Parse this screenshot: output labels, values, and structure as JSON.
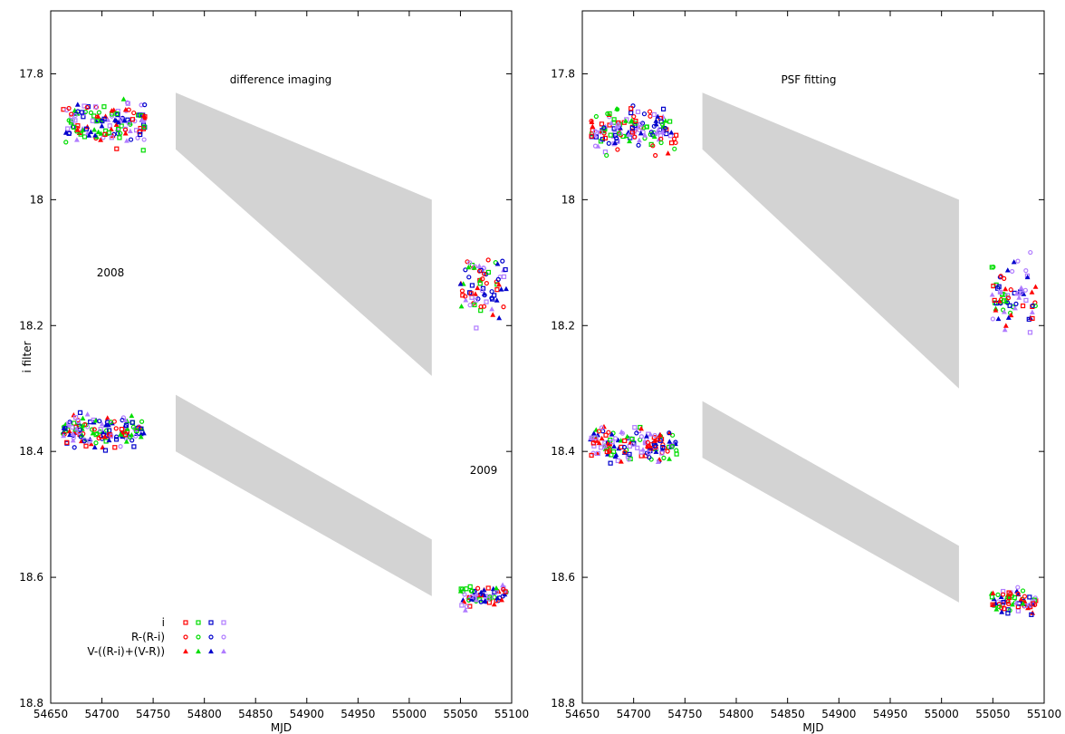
{
  "chart_data": [
    {
      "type": "scatter",
      "title": "difference imaging",
      "xlabel": "MJD",
      "ylabel": "i filter",
      "xlim": [
        54650,
        55100
      ],
      "ylim": [
        18.8,
        17.7
      ],
      "y_inverted": true,
      "x_ticks": [
        "54650",
        "54700",
        "54750",
        "54800",
        "54850",
        "54900",
        "54950",
        "55000",
        "55050",
        "55100"
      ],
      "y_ticks": [
        "17.8",
        "18",
        "18.2",
        "18.4",
        "18.6",
        "18.8"
      ],
      "annotations": [
        {
          "text": "2008",
          "x": 54690,
          "y": 18.12
        },
        {
          "text": "2009",
          "x": 55068,
          "y": 18.44
        }
      ],
      "bands": [
        {
          "x": [
            54772,
            55022
          ],
          "y_top": [
            17.83,
            18.0
          ],
          "y_bottom": [
            17.92,
            18.28
          ]
        },
        {
          "x": [
            54772,
            55022
          ],
          "y_top": [
            18.31,
            18.54
          ],
          "y_bottom": [
            18.4,
            18.63
          ]
        }
      ],
      "clusters": [
        {
          "x_range": [
            54662,
            54742
          ],
          "y_center": 17.88,
          "y_spread": 0.045,
          "season": "2008"
        },
        {
          "x_range": [
            54662,
            54742
          ],
          "y_center": 18.37,
          "y_spread": 0.035,
          "season": "2008"
        },
        {
          "x_range": [
            55050,
            55095
          ],
          "y_center": 18.14,
          "y_spread": 0.07,
          "season": "2009"
        },
        {
          "x_range": [
            55050,
            55095
          ],
          "y_center": 18.63,
          "y_spread": 0.025,
          "season": "2009"
        }
      ]
    },
    {
      "type": "scatter",
      "title": "PSF fitting",
      "xlabel": "MJD",
      "ylabel": "",
      "xlim": [
        54650,
        55100
      ],
      "ylim": [
        18.8,
        17.7
      ],
      "y_inverted": true,
      "x_ticks": [
        "54650",
        "54700",
        "54750",
        "54800",
        "54850",
        "54900",
        "54950",
        "55000",
        "55050",
        "55100"
      ],
      "y_ticks": [
        "17.8",
        "18",
        "18.2",
        "18.4",
        "18.6",
        "18.8"
      ],
      "annotations": [],
      "bands": [
        {
          "x": [
            54767,
            55017
          ],
          "y_top": [
            17.83,
            18.0
          ],
          "y_bottom": [
            17.92,
            18.3
          ]
        },
        {
          "x": [
            54767,
            55017
          ],
          "y_top": [
            18.32,
            18.55
          ],
          "y_bottom": [
            18.41,
            18.64
          ]
        }
      ],
      "clusters": [
        {
          "x_range": [
            54658,
            54742
          ],
          "y_center": 17.89,
          "y_spread": 0.045,
          "season": "2008"
        },
        {
          "x_range": [
            54658,
            54742
          ],
          "y_center": 18.39,
          "y_spread": 0.04,
          "season": "2008"
        },
        {
          "x_range": [
            55048,
            55092
          ],
          "y_center": 18.15,
          "y_spread": 0.07,
          "season": "2009"
        },
        {
          "x_range": [
            55048,
            55092
          ],
          "y_center": 18.64,
          "y_spread": 0.025,
          "season": "2009"
        }
      ]
    }
  ],
  "legend": {
    "entries": [
      {
        "label": "i",
        "marker": "square"
      },
      {
        "label": "R-(R-i)",
        "marker": "circle"
      },
      {
        "label": "V-((R-i)+(V-R))",
        "marker": "triangle"
      }
    ],
    "colors": [
      "#ff0000",
      "#00dd00",
      "#0000cc",
      "#b07cff"
    ]
  },
  "colors": {
    "band": "#d3d3d3",
    "axis": "#000000"
  }
}
